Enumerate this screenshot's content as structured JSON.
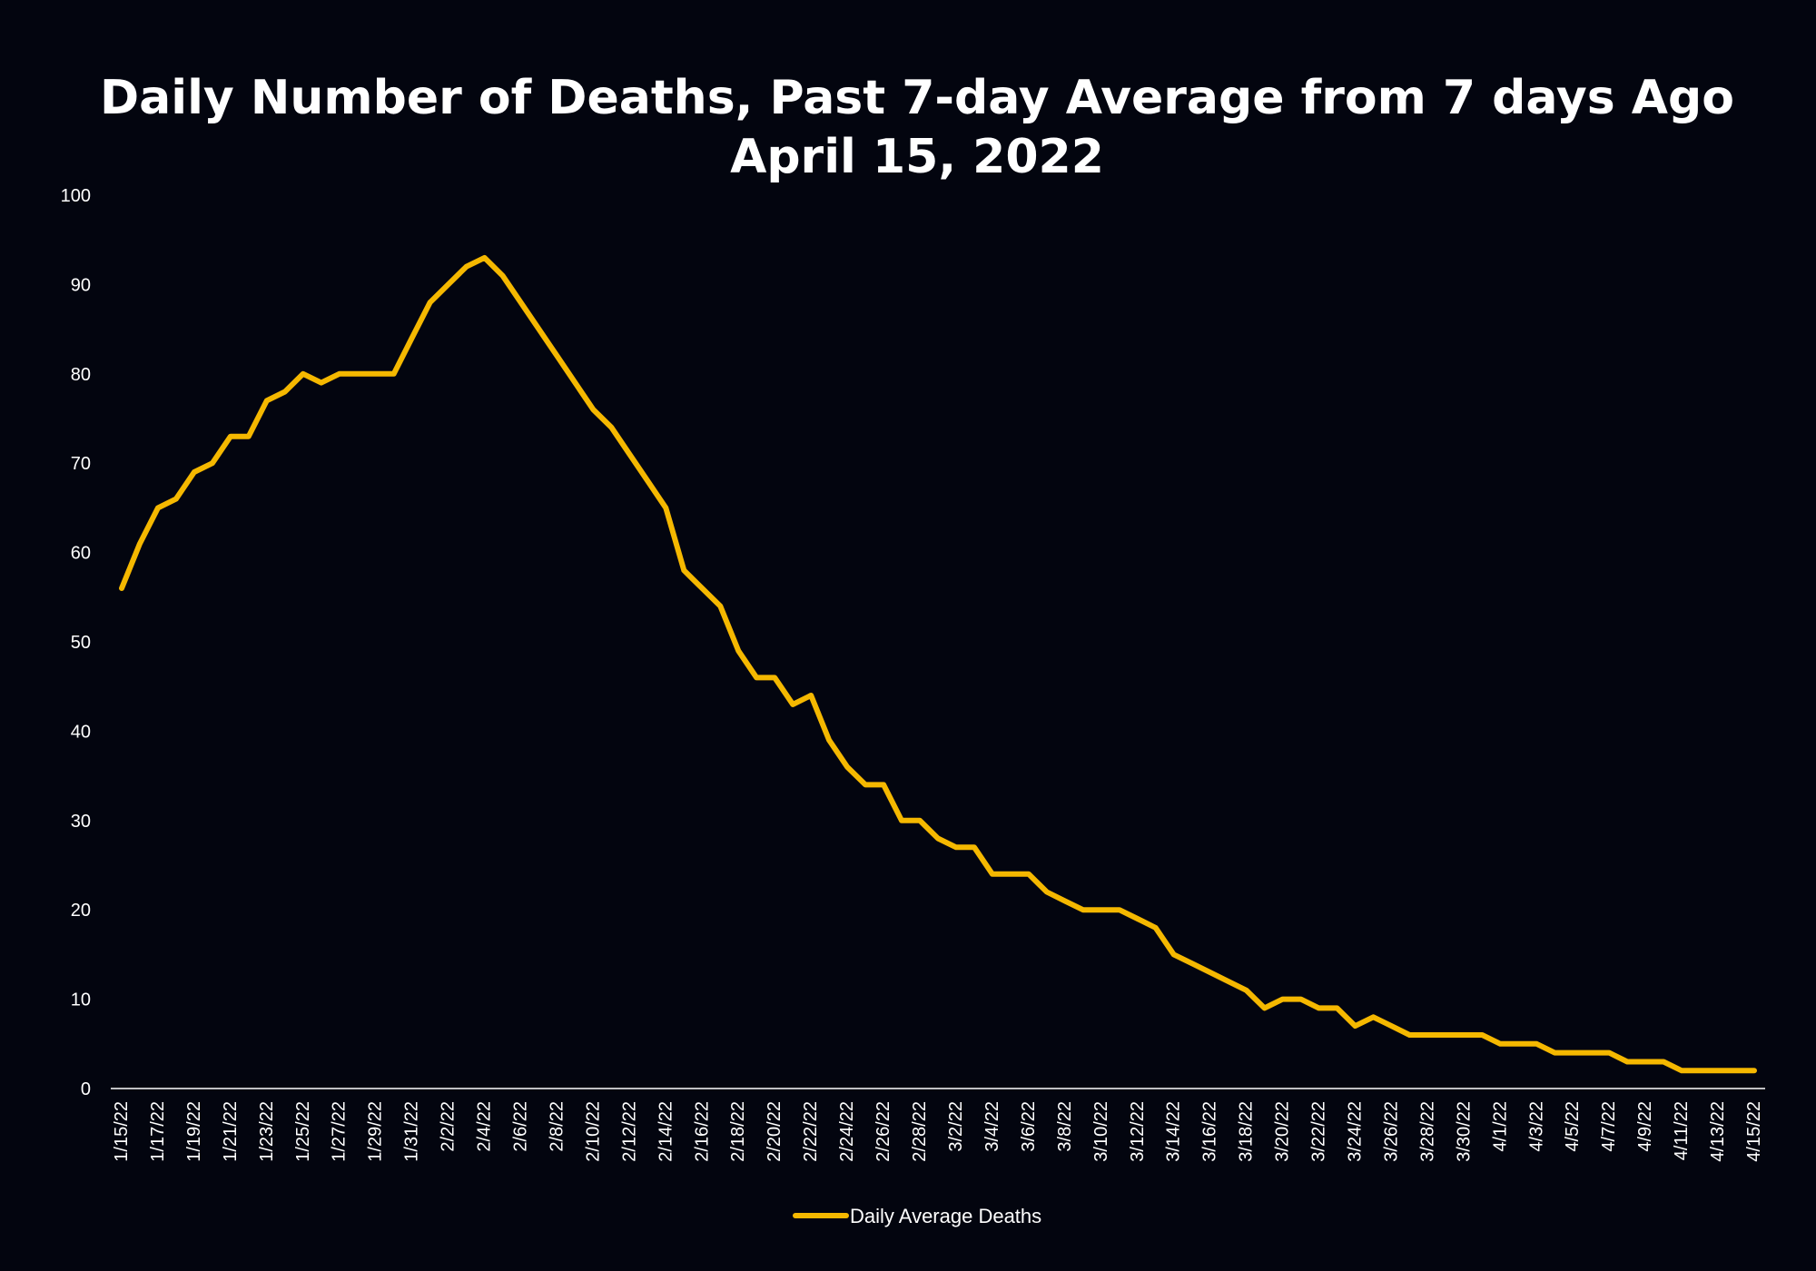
{
  "chart_data": {
    "type": "line",
    "title": "Daily Number of Deaths, Past 7-day Average from 7 days Ago",
    "subtitle": "April 15, 2022",
    "xlabel": "",
    "ylabel": "",
    "ylim": [
      0,
      100
    ],
    "y_ticks": [
      "0",
      "10",
      "20",
      "30",
      "40",
      "50",
      "60",
      "70",
      "80",
      "90",
      "100"
    ],
    "x_tick_labels": [
      "1/15/22",
      "1/17/22",
      "1/19/22",
      "1/21/22",
      "1/23/22",
      "1/25/22",
      "1/27/22",
      "1/29/22",
      "1/31/22",
      "2/2/22",
      "2/4/22",
      "2/6/22",
      "2/8/22",
      "2/10/22",
      "2/12/22",
      "2/14/22",
      "2/16/22",
      "2/18/22",
      "2/20/22",
      "2/22/22",
      "2/24/22",
      "2/26/22",
      "2/28/22",
      "3/2/22",
      "3/4/22",
      "3/6/22",
      "3/8/22",
      "3/10/22",
      "3/12/22",
      "3/14/22",
      "3/16/22",
      "3/18/22",
      "3/20/22",
      "3/22/22",
      "3/24/22",
      "3/26/22",
      "3/28/22",
      "3/30/22",
      "4/1/22",
      "4/3/22",
      "4/5/22",
      "4/7/22",
      "4/9/22",
      "4/11/22",
      "4/13/22",
      "4/15/22"
    ],
    "grid": false,
    "legend_position": "bottom-center",
    "line_color": "#f5b800",
    "series": [
      {
        "name": "Daily Average Deaths",
        "values": [
          56,
          61,
          65,
          66,
          69,
          70,
          73,
          73,
          77,
          78,
          80,
          79,
          80,
          80,
          80,
          80,
          84,
          88,
          90,
          92,
          93,
          91,
          88,
          85,
          82,
          79,
          76,
          74,
          71,
          68,
          65,
          58,
          56,
          54,
          49,
          46,
          46,
          43,
          44,
          39,
          36,
          34,
          34,
          30,
          30,
          28,
          27,
          27,
          24,
          24,
          24,
          22,
          21,
          20,
          20,
          20,
          19,
          18,
          15,
          14,
          13,
          12,
          11,
          9,
          10,
          10,
          9,
          9,
          7,
          8,
          7,
          6,
          6,
          6,
          6,
          6,
          5,
          5,
          5,
          4,
          4,
          4,
          4,
          3,
          3,
          3,
          2,
          2,
          2,
          2,
          2
        ]
      }
    ]
  }
}
